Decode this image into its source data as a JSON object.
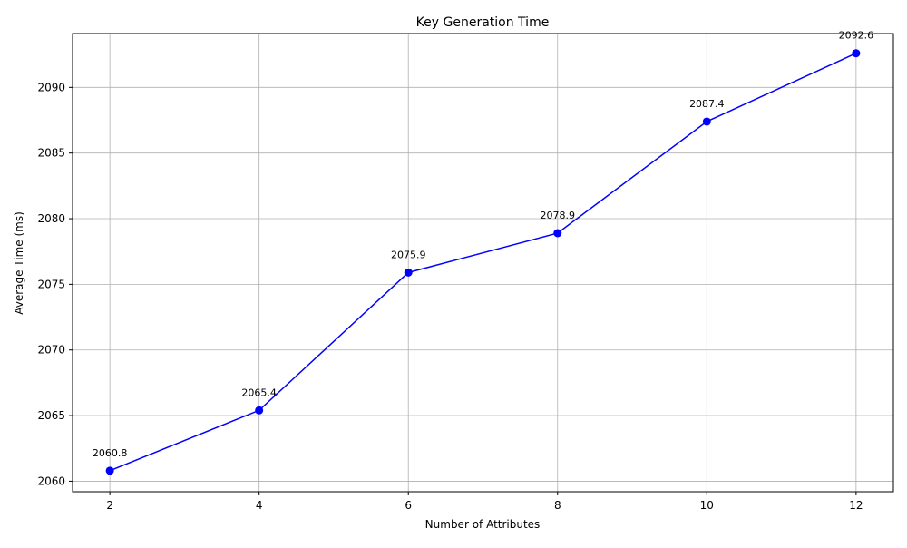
{
  "chart_data": {
    "type": "line",
    "title": "Key Generation Time",
    "xlabel": "Number of Attributes",
    "ylabel": "Average Time (ms)",
    "xlim": [
      1.5,
      12.5
    ],
    "ylim": [
      2059.2,
      2094.1
    ],
    "xticks": [
      2,
      4,
      6,
      8,
      10,
      12
    ],
    "yticks": [
      2060,
      2065,
      2070,
      2075,
      2080,
      2085,
      2090
    ],
    "grid": true,
    "series": [
      {
        "color": "#0000ff",
        "marker": "circle",
        "points": [
          {
            "x": 2,
            "y": 2060.8,
            "label": "2060.8"
          },
          {
            "x": 4,
            "y": 2065.4,
            "label": "2065.4"
          },
          {
            "x": 6,
            "y": 2075.9,
            "label": "2075.9"
          },
          {
            "x": 8,
            "y": 2078.9,
            "label": "2078.9"
          },
          {
            "x": 10,
            "y": 2087.4,
            "label": "2087.4"
          },
          {
            "x": 12,
            "y": 2092.6,
            "label": "2092.6"
          }
        ]
      }
    ]
  }
}
